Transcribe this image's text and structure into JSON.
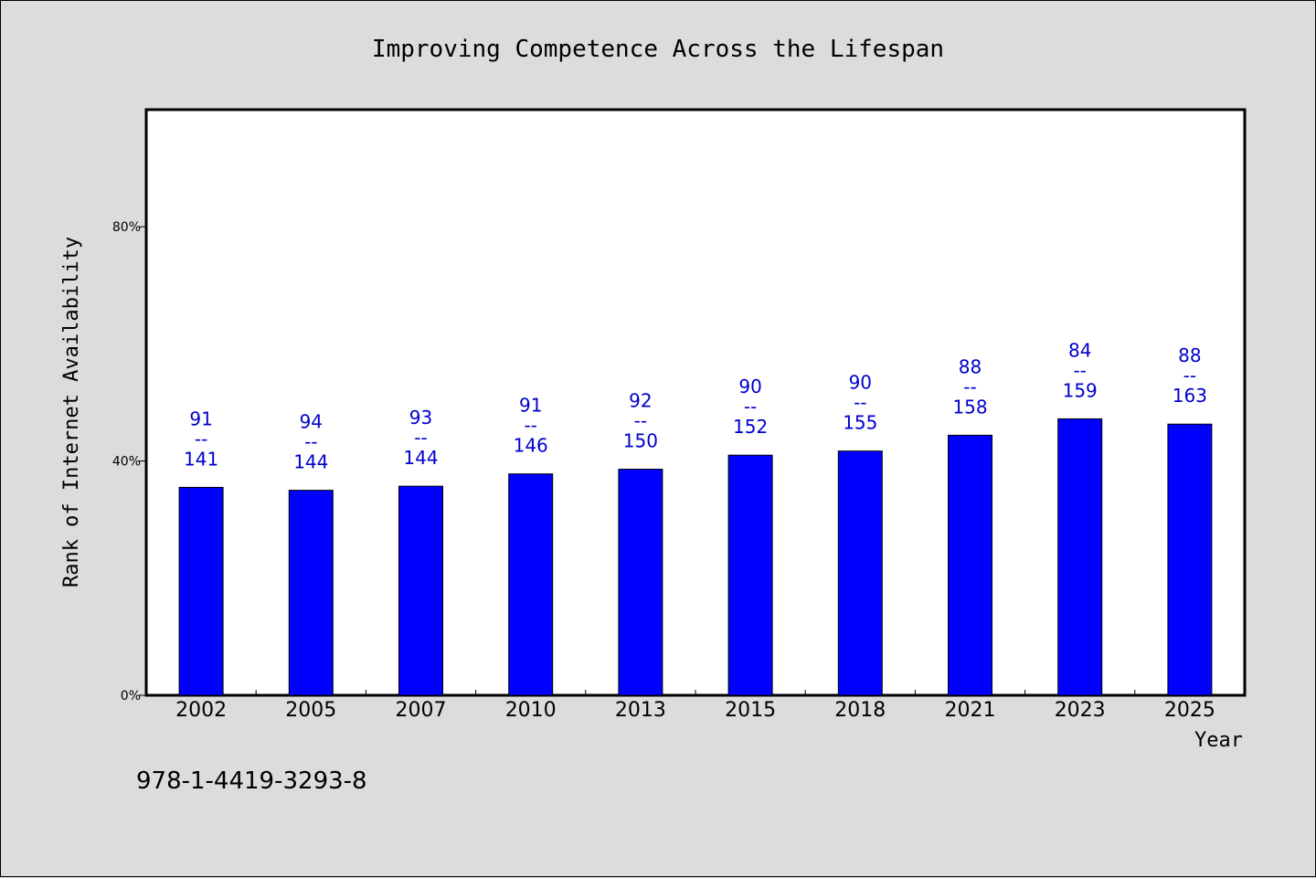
{
  "chart_data": {
    "type": "bar",
    "title": "Improving Competence Across the Lifespan",
    "xlabel": "Year",
    "ylabel": "Rank of Internet Availability",
    "categories": [
      "2002",
      "2005",
      "2007",
      "2010",
      "2013",
      "2015",
      "2018",
      "2021",
      "2023",
      "2025"
    ],
    "values": [
      35.5,
      35.0,
      35.7,
      37.8,
      38.6,
      41.0,
      41.7,
      44.4,
      47.2,
      46.3
    ],
    "ylim": [
      0,
      100
    ],
    "yticks": [
      {
        "value": 0,
        "label": "0%"
      },
      {
        "value": 40,
        "label": "40%"
      },
      {
        "value": 80,
        "label": "80%"
      }
    ],
    "data_labels": [
      {
        "top": "91",
        "sep": "--",
        "bottom": "141"
      },
      {
        "top": "94",
        "sep": "--",
        "bottom": "144"
      },
      {
        "top": "93",
        "sep": "--",
        "bottom": "144"
      },
      {
        "top": "91",
        "sep": "--",
        "bottom": "146"
      },
      {
        "top": "92",
        "sep": "--",
        "bottom": "150"
      },
      {
        "top": "90",
        "sep": "--",
        "bottom": "152"
      },
      {
        "top": "90",
        "sep": "--",
        "bottom": "155"
      },
      {
        "top": "88",
        "sep": "--",
        "bottom": "158"
      },
      {
        "top": "84",
        "sep": "--",
        "bottom": "159"
      },
      {
        "top": "88",
        "sep": "--",
        "bottom": "163"
      }
    ],
    "bar_color": "#0000ff",
    "label_color": "#0000cc",
    "grid": false,
    "legend": "none"
  },
  "footer": {
    "code": "978-1-4419-3293-8"
  }
}
